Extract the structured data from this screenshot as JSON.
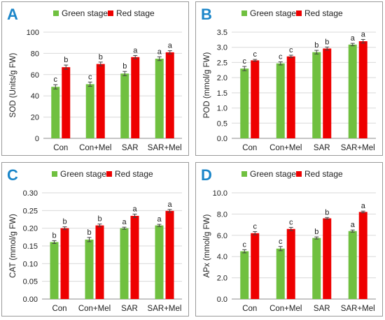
{
  "figure": {
    "panels": [
      "A",
      "B",
      "C",
      "D"
    ]
  },
  "colors": {
    "green": "#70c040",
    "red": "#ee0000",
    "panel_letter": "#1b86c9",
    "border": "#9a9a9a",
    "axis": "#8c8c8c",
    "gridline": "#d9d9d9"
  },
  "chart_data": [
    {
      "panel": "A",
      "type": "bar",
      "ylabel": "SOD (Units/g FW)",
      "ylim": [
        0,
        100
      ],
      "yticks": [
        "0",
        "20",
        "40",
        "60",
        "80",
        "100"
      ],
      "ytick_values": [
        0,
        20,
        40,
        60,
        80,
        100
      ],
      "grid": true,
      "legend": "top",
      "categories": [
        "Con",
        "Con+Mel",
        "SAR",
        "SAR+Mel"
      ],
      "series": [
        {
          "name": "Green stage",
          "color": "#70c040",
          "values": [
            48.5,
            51,
            61,
            75
          ],
          "errors": [
            2,
            2,
            2,
            1.8
          ],
          "letters": [
            "c",
            "c",
            "b",
            "a"
          ]
        },
        {
          "name": "Red stage",
          "color": "#ee0000",
          "values": [
            67,
            70,
            76.5,
            81
          ],
          "errors": [
            2,
            1.8,
            1.5,
            1.5
          ],
          "letters": [
            "b",
            "b",
            "a",
            "a"
          ]
        }
      ]
    },
    {
      "panel": "B",
      "type": "bar",
      "ylabel": "POD (mmol/g FW)",
      "ylim": [
        0,
        3.5
      ],
      "yticks": [
        "0.0",
        "0.5",
        "1.0",
        "1.5",
        "2.0",
        "2.5",
        "3.0",
        "3.5"
      ],
      "ytick_values": [
        0,
        0.5,
        1.0,
        1.5,
        2.0,
        2.5,
        3.0,
        3.5
      ],
      "grid": true,
      "legend": "top",
      "categories": [
        "Con",
        "Con+Mel",
        "SAR",
        "SAR+Mel"
      ],
      "series": [
        {
          "name": "Green stage",
          "color": "#70c040",
          "values": [
            2.3,
            2.47,
            2.84,
            3.09
          ],
          "errors": [
            0.07,
            0.05,
            0.06,
            0.04
          ],
          "letters": [
            "c",
            "c",
            "b",
            "a"
          ]
        },
        {
          "name": "Red stage",
          "color": "#ee0000",
          "values": [
            2.57,
            2.7,
            2.96,
            3.2
          ],
          "errors": [
            0.03,
            0.04,
            0.05,
            0.06
          ],
          "letters": [
            "c",
            "c",
            "b",
            "a"
          ]
        }
      ]
    },
    {
      "panel": "C",
      "type": "bar",
      "ylabel": "CAT (mmol/g FW)",
      "ylim": [
        0,
        0.3
      ],
      "yticks": [
        "0.00",
        "0.05",
        "0.10",
        "0.15",
        "0.20",
        "0.25",
        "0.30"
      ],
      "ytick_values": [
        0,
        0.05,
        0.1,
        0.15,
        0.2,
        0.25,
        0.3
      ],
      "grid": true,
      "legend": "top",
      "categories": [
        "Con",
        "Con+Mel",
        "SAR",
        "SAR+Mel"
      ],
      "series": [
        {
          "name": "Green stage",
          "color": "#70c040",
          "values": [
            0.161,
            0.168,
            0.2,
            0.208
          ],
          "errors": [
            0.004,
            0.006,
            0.003,
            0.003
          ],
          "letters": [
            "b",
            "b",
            "a",
            "a"
          ]
        },
        {
          "name": "Red stage",
          "color": "#ee0000",
          "values": [
            0.2,
            0.208,
            0.235,
            0.249
          ],
          "errors": [
            0.004,
            0.004,
            0.005,
            0.004
          ],
          "letters": [
            "b",
            "b",
            "a",
            "a"
          ]
        }
      ]
    },
    {
      "panel": "D",
      "type": "bar",
      "ylabel": "APx (mmol/g FW)",
      "ylim": [
        0,
        10
      ],
      "yticks": [
        "0.0",
        "2.0",
        "4.0",
        "6.0",
        "8.0",
        "10.0"
      ],
      "ytick_values": [
        0,
        2,
        4,
        6,
        8,
        10
      ],
      "grid": true,
      "legend": "top",
      "categories": [
        "Con",
        "Con+Mel",
        "SAR",
        "SAR+Mel"
      ],
      "series": [
        {
          "name": "Green stage",
          "color": "#70c040",
          "values": [
            4.5,
            4.75,
            5.75,
            6.4
          ],
          "errors": [
            0.15,
            0.2,
            0.1,
            0.1
          ],
          "letters": [
            "c",
            "c",
            "b",
            "a"
          ]
        },
        {
          "name": "Red stage",
          "color": "#ee0000",
          "values": [
            6.2,
            6.6,
            7.6,
            8.2
          ],
          "errors": [
            0.15,
            0.15,
            0.08,
            0.08
          ],
          "letters": [
            "c",
            "c",
            "b",
            "a"
          ]
        }
      ]
    }
  ]
}
